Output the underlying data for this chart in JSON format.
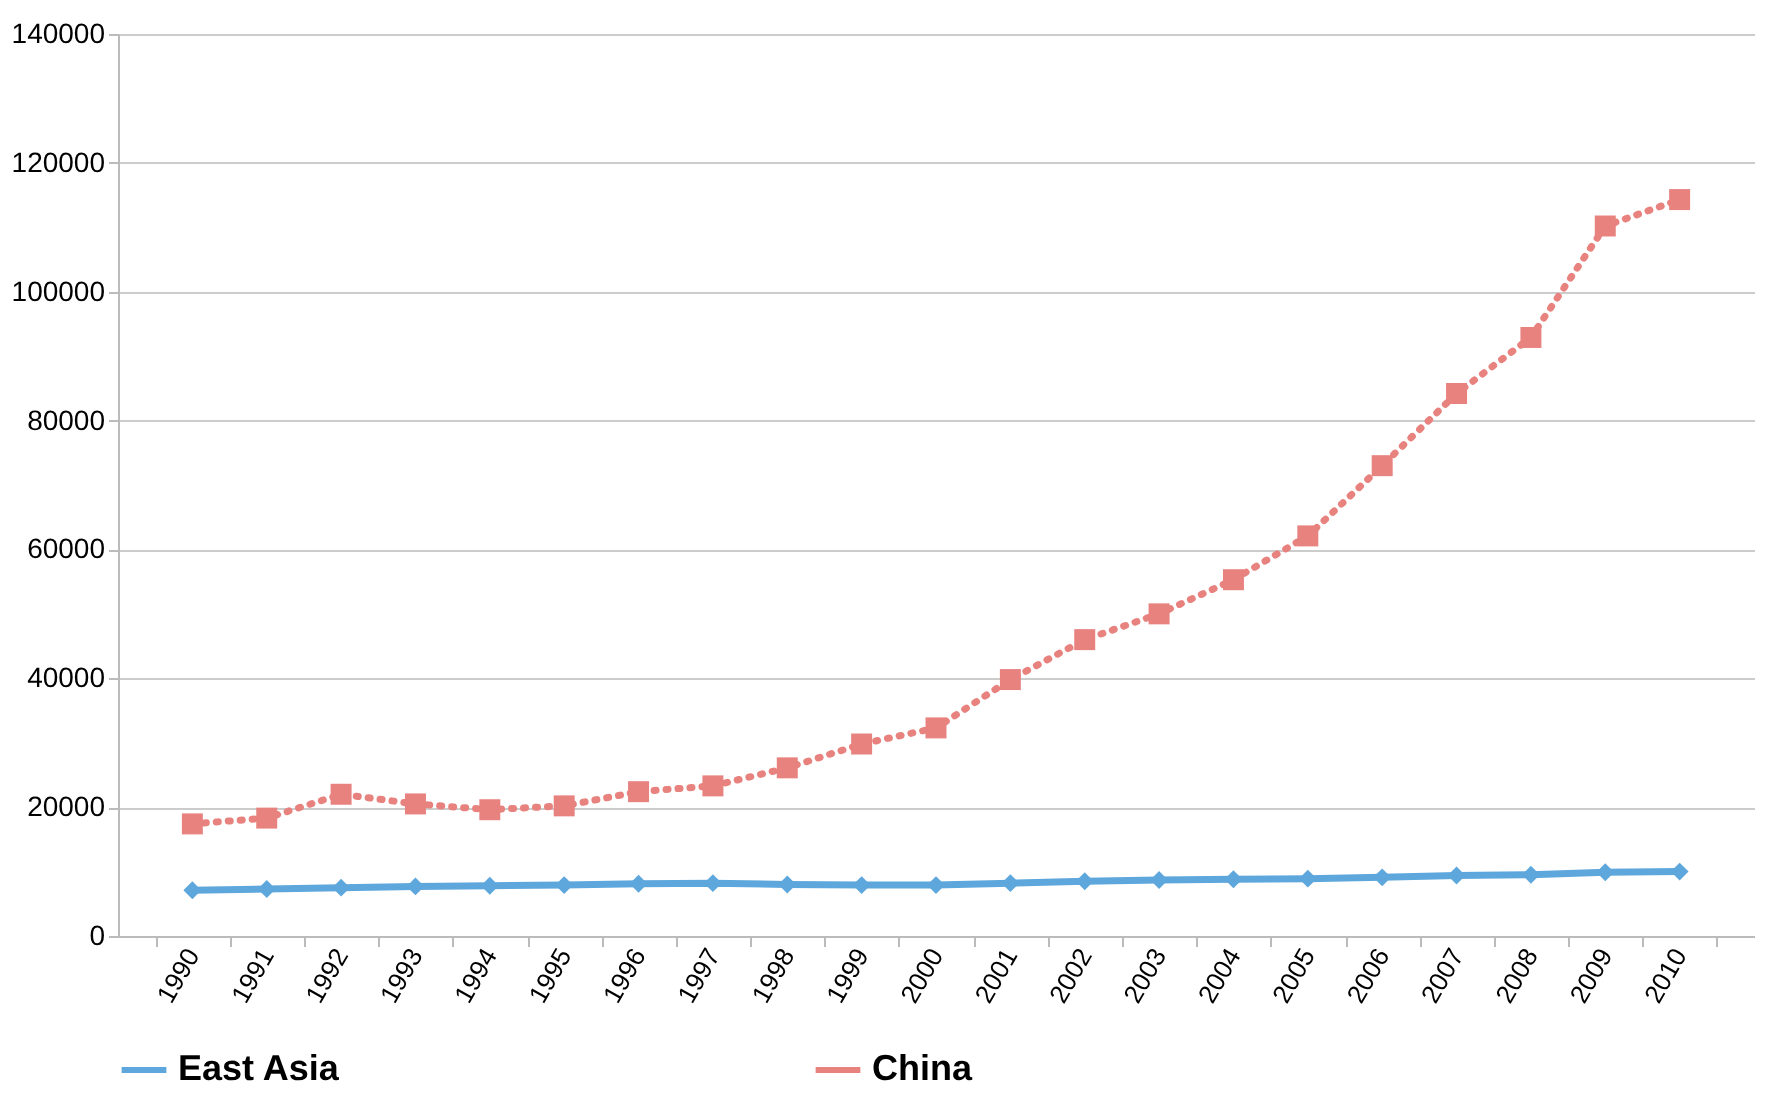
{
  "chart_data": {
    "type": "line",
    "categories": [
      "1990",
      "1991",
      "1992",
      "1993",
      "1994",
      "1995",
      "1996",
      "1997",
      "1998",
      "1999",
      "2000",
      "2001",
      "2002",
      "2003",
      "2004",
      "2005",
      "2006",
      "2007",
      "2008",
      "2009",
      "2010"
    ],
    "series": [
      {
        "name": "East Asia",
        "color": "#5ea7dc",
        "marker": "diamond",
        "line_style": "solid",
        "values": [
          7100,
          7300,
          7500,
          7700,
          7800,
          7900,
          8100,
          8200,
          8000,
          7900,
          7900,
          8200,
          8500,
          8700,
          8800,
          8900,
          9100,
          9400,
          9500,
          9900,
          10000
        ]
      },
      {
        "name": "China",
        "color": "#e8827e",
        "marker": "square",
        "line_style": "dotted",
        "values": [
          17400,
          18300,
          22000,
          20500,
          19600,
          20200,
          22400,
          23300,
          26100,
          29800,
          32300,
          39800,
          46000,
          50000,
          55300,
          62100,
          73000,
          84200,
          92900,
          110200,
          114300
        ]
      }
    ],
    "ylim": [
      0,
      140000
    ],
    "yticks": [
      0,
      20000,
      40000,
      60000,
      80000,
      100000,
      120000,
      140000
    ],
    "grid": "y",
    "legend": "bottom"
  }
}
